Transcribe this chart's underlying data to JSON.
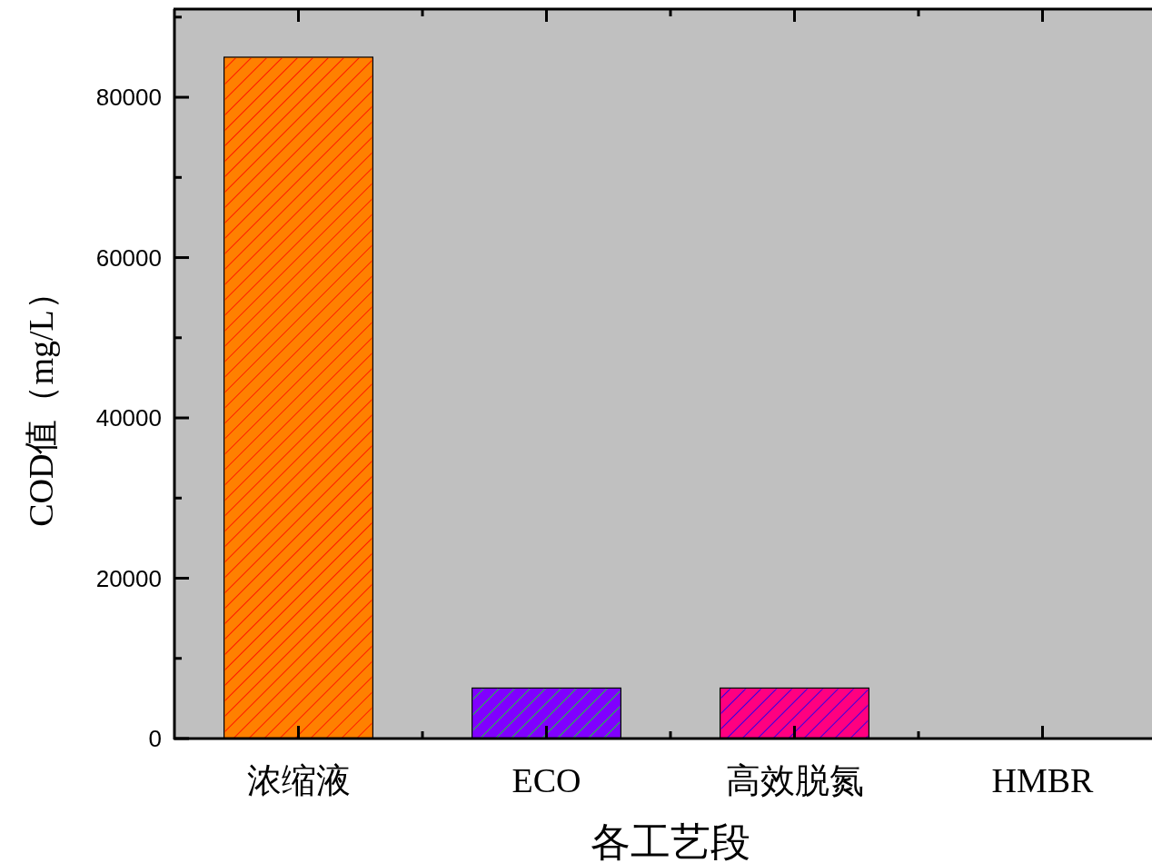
{
  "chart_data": {
    "type": "bar",
    "xlabel": "各工艺段",
    "ylabel": "COD值（mg/L）",
    "categories": [
      "浓缩液",
      "ECO",
      "高效脱氮",
      "HMBR"
    ],
    "values": [
      85000,
      6300,
      6300,
      null
    ],
    "colors": [
      "#ff8000",
      "#8000ff",
      "#ff0080",
      null
    ],
    "ylim": [
      0,
      91000
    ],
    "yticks": [
      0,
      {
        "value": 10000,
        "label": null
      },
      20000,
      {
        "value": 30000,
        "label": null
      },
      40000,
      {
        "value": 50000,
        "label": null
      },
      60000,
      {
        "value": 70000,
        "label": null
      },
      80000,
      {
        "value": 90000,
        "label": null
      }
    ]
  }
}
